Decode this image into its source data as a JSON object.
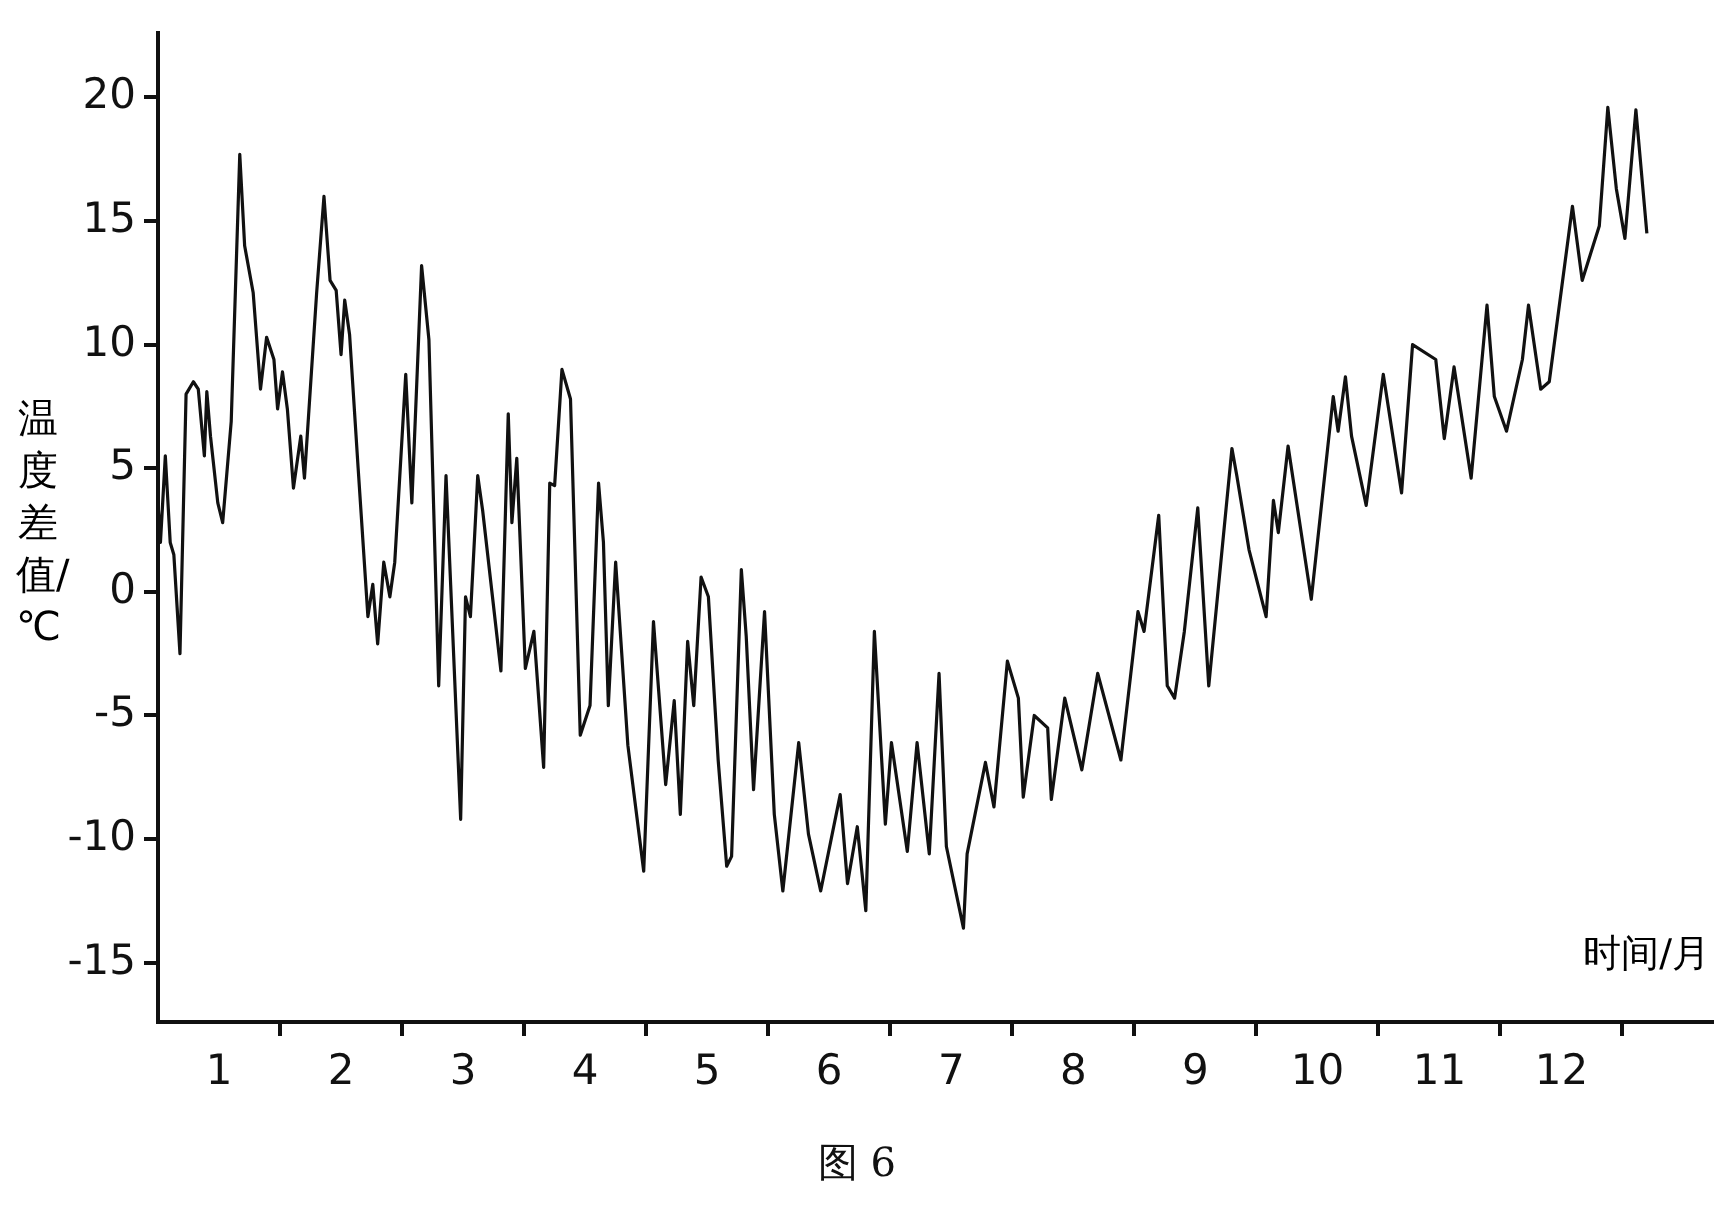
{
  "chart_data": {
    "type": "line",
    "title": "图 6",
    "xlabel": "时间/月",
    "ylabel": "温度差值/℃",
    "x": [
      0,
      0.02,
      0.06,
      0.1,
      0.13,
      0.18,
      0.23,
      0.29,
      0.33,
      0.38,
      0.4,
      0.43,
      0.49,
      0.53,
      0.6,
      0.67,
      0.71,
      0.78,
      0.84,
      0.89,
      0.95,
      0.98,
      1.02,
      1.06,
      1.11,
      1.17,
      1.2,
      1.3,
      1.36,
      1.41,
      1.46,
      1.5,
      1.53,
      1.57,
      1.64,
      1.72,
      1.76,
      1.8,
      1.85,
      1.9,
      1.94,
      2.03,
      2.08,
      2.16,
      2.22,
      2.3,
      2.36,
      2.48,
      2.52,
      2.56,
      2.62,
      2.66,
      2.81,
      2.87,
      2.9,
      2.94,
      3.01,
      3.08,
      3.16,
      3.21,
      3.25,
      3.31,
      3.38,
      3.46,
      3.54,
      3.61,
      3.65,
      3.69,
      3.75,
      3.85,
      3.98,
      4.06,
      4.16,
      4.23,
      4.28,
      4.34,
      4.39,
      4.45,
      4.51,
      4.59,
      4.66,
      4.7,
      4.78,
      4.82,
      4.88,
      4.97,
      5.05,
      5.12,
      5.25,
      5.33,
      5.43,
      5.59,
      5.65,
      5.73,
      5.8,
      5.87,
      5.96,
      6.01,
      6.14,
      6.22,
      6.32,
      6.4,
      6.46,
      6.6,
      6.63,
      6.78,
      6.85,
      6.96,
      7.05,
      7.09,
      7.18,
      7.29,
      7.32,
      7.43,
      7.57,
      7.7,
      7.89,
      7.92,
      8.03,
      8.08,
      8.2,
      8.27,
      8.33,
      8.41,
      8.52,
      8.61,
      8.8,
      8.84,
      8.94,
      9.08,
      9.14,
      9.18,
      9.26,
      9.45,
      9.63,
      9.67,
      9.73,
      9.78,
      9.9,
      10.04,
      10.19,
      10.28,
      10.47,
      10.54,
      10.62,
      10.76,
      10.89,
      10.95,
      11.05,
      11.18,
      11.23,
      11.33,
      11.4,
      11.59,
      11.67,
      11.81,
      11.88,
      11.95,
      12.02,
      12.11,
      12.2
    ],
    "series": [
      {
        "color": "#111111",
        "values": [
          3.6,
          2.0,
          5.5,
          2.0,
          1.5,
          -2.5,
          8.0,
          8.5,
          8.2,
          5.5,
          8.1,
          6.3,
          3.6,
          2.8,
          6.9,
          17.7,
          14.0,
          12.1,
          8.2,
          10.3,
          9.4,
          7.4,
          8.9,
          7.4,
          4.2,
          6.3,
          4.6,
          12.1,
          16.0,
          12.6,
          12.2,
          9.6,
          11.8,
          10.4,
          5.0,
          -1.0,
          0.3,
          -2.1,
          1.2,
          -0.2,
          1.2,
          8.8,
          3.6,
          13.2,
          10.2,
          -3.8,
          4.7,
          -9.2,
          -0.2,
          -1.0,
          4.7,
          3.3,
          -3.2,
          7.2,
          2.8,
          5.4,
          -3.1,
          -1.6,
          -7.1,
          4.4,
          4.3,
          9.0,
          7.8,
          -5.8,
          -4.6,
          4.4,
          2.0,
          -4.6,
          1.2,
          -6.2,
          -11.3,
          -1.2,
          -7.8,
          -4.4,
          -9.0,
          -2.0,
          -4.6,
          0.6,
          -0.2,
          -6.8,
          -11.1,
          -10.7,
          0.9,
          -1.8,
          -8.0,
          -0.8,
          -9.0,
          -12.1,
          -6.1,
          -9.8,
          -12.1,
          -8.2,
          -11.8,
          -9.5,
          -12.9,
          -1.6,
          -9.4,
          -6.1,
          -10.5,
          -6.1,
          -10.6,
          -3.3,
          -10.3,
          -13.6,
          -10.6,
          -6.9,
          -8.7,
          -2.8,
          -4.3,
          -8.3,
          -5.0,
          -5.5,
          -8.4,
          -4.3,
          -7.2,
          -3.3,
          -6.8,
          -5.5,
          -0.8,
          -1.6,
          3.1,
          -3.8,
          -4.3,
          -1.6,
          3.4,
          -3.8,
          5.8,
          4.7,
          1.7,
          -1.0,
          3.7,
          2.4,
          5.9,
          -0.3,
          7.9,
          6.5,
          8.7,
          6.3,
          3.5,
          8.8,
          4.0,
          10.0,
          9.4,
          6.2,
          9.1,
          4.6,
          11.6,
          7.9,
          6.5,
          9.4,
          11.6,
          8.2,
          8.5,
          15.6,
          12.6,
          14.8,
          19.6,
          16.3,
          14.3,
          19.5,
          14.5
        ]
      }
    ],
    "xlim": [
      0,
      12.75
    ],
    "ylim": [
      -17.4,
      22.6
    ],
    "xticks": [
      {
        "value": 0.5,
        "label": "1"
      },
      {
        "value": 1,
        "label": null
      },
      {
        "value": 1.5,
        "label": "2"
      },
      {
        "value": 2,
        "label": null
      },
      {
        "value": 2.5,
        "label": "3"
      },
      {
        "value": 3,
        "label": null
      },
      {
        "value": 3.5,
        "label": "4"
      },
      {
        "value": 4,
        "label": null
      },
      {
        "value": 4.5,
        "label": "5"
      },
      {
        "value": 5,
        "label": null
      },
      {
        "value": 5.5,
        "label": "6"
      },
      {
        "value": 6,
        "label": null
      },
      {
        "value": 6.5,
        "label": "7"
      },
      {
        "value": 7,
        "label": null
      },
      {
        "value": 7.5,
        "label": "8"
      },
      {
        "value": 8,
        "label": null
      },
      {
        "value": 8.5,
        "label": "9"
      },
      {
        "value": 9,
        "label": null
      },
      {
        "value": 9.5,
        "label": "10"
      },
      {
        "value": 10,
        "label": null
      },
      {
        "value": 10.5,
        "label": "11"
      },
      {
        "value": 11,
        "label": null
      },
      {
        "value": 11.5,
        "label": "12"
      },
      {
        "value": 12,
        "label": null
      }
    ],
    "yticks": [
      -15,
      -10,
      -5,
      0,
      5,
      10,
      15,
      20
    ],
    "marker": "none",
    "line_style": "solid"
  }
}
